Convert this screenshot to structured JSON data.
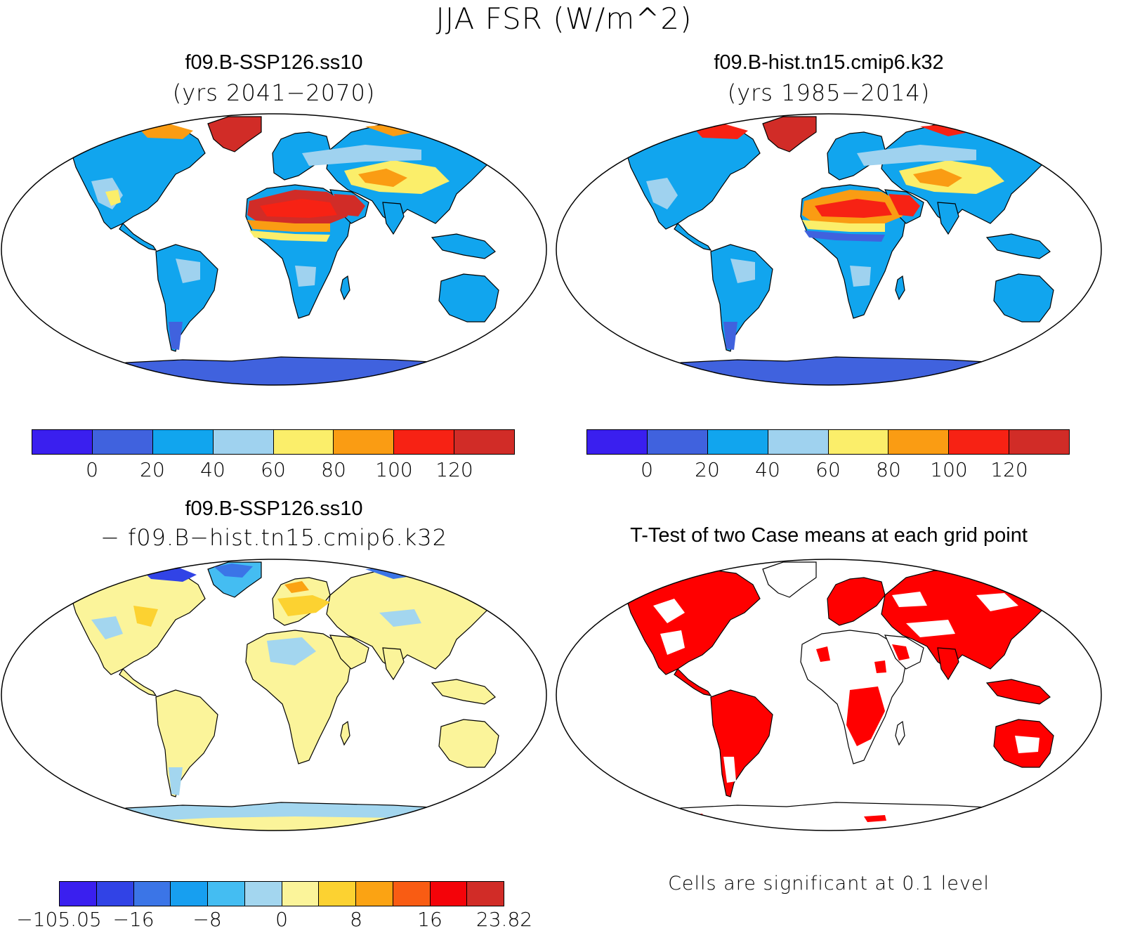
{
  "title": "JJA FSR (W/m^2)",
  "colors": {
    "abs_scale": [
      "#3a1fef",
      "#4062de",
      "#11a5ee",
      "#9fd2ef",
      "#fbee6a",
      "#fa9c13",
      "#f72214",
      "#d12c27"
    ],
    "diff_scale": [
      "#3a1fef",
      "#3143e6",
      "#3b75e7",
      "#179ff0",
      "#44bdf2",
      "#a3d6ef",
      "#fbf49a",
      "#fcd231",
      "#fba313",
      "#f95c13",
      "#f40309",
      "#d12c27"
    ],
    "sig": "#ff0000",
    "ocean": "#ffffff",
    "coast": "#000000"
  },
  "panels": {
    "p1": {
      "title": "f09.B-SSP126.ss10",
      "subtitle": "(yrs 2041−2070)"
    },
    "p2": {
      "title": "f09.B-hist.tn15.cmip6.k32",
      "subtitle": "(yrs 1985−2014)"
    },
    "p3": {
      "title": "f09.B-SSP126.ss10",
      "subtitle": "− f09.B−hist.tn15.cmip6.k32"
    },
    "p4": {
      "title": "T-Test of two Case means at each grid point",
      "note": "Cells are significant at 0.1 level"
    }
  },
  "abs_ticks": [
    "0",
    "20",
    "40",
    "60",
    "80",
    "100",
    "120"
  ],
  "diff_ticks": [
    "−105.05",
    "−16",
    "−8",
    "0",
    "8",
    "16",
    "23.82"
  ]
}
